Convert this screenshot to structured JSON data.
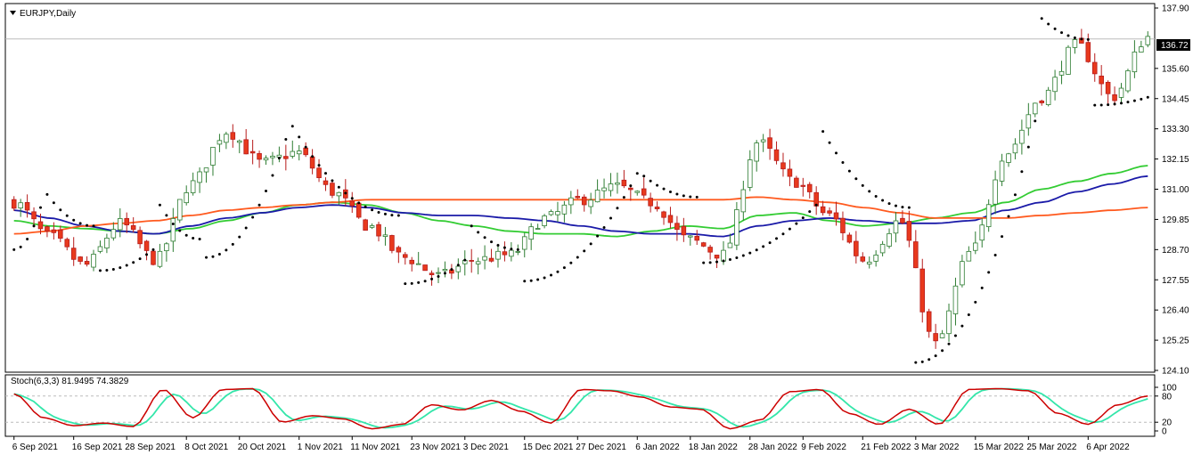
{
  "chart_window": {
    "symbol_label": "EURJPY,Daily",
    "stoch_label": "Stoch(6,3,3) 81.9495 74.3829",
    "current_price_label": "136.72"
  },
  "colors": {
    "bull_fill": "#ffffff",
    "bull_border": "#2e7d32",
    "bear_fill": "#e8391d",
    "bear_border": "#b71c1c",
    "ma_green": "#33cc33",
    "ma_blue": "#1a1aa8",
    "ma_orange": "#ff5a1f",
    "stoch_main": "#cc0000",
    "stoch_signal": "#33e6aa",
    "grid_line": "#bbbbbb"
  },
  "chart_data": [
    {
      "type": "candlestick",
      "title": "EURJPY,Daily",
      "price_axis_ticks": [
        "137.90",
        "136.72",
        "135.60",
        "134.45",
        "133.30",
        "132.15",
        "131.00",
        "129.85",
        "128.70",
        "127.55",
        "126.40",
        "125.25",
        "124.10"
      ],
      "ylim": [
        124.1,
        137.9
      ],
      "current_price": 136.72,
      "date_axis_ticks": [
        "6 Sep 2021",
        "16 Sep 2021",
        "28 Sep 2021",
        "8 Oct 2021",
        "20 Oct 2021",
        "1 Nov 2021",
        "11 Nov 2021",
        "23 Nov 2021",
        "3 Dec 2021",
        "15 Dec 2021",
        "27 Dec 2021",
        "6 Jan 2022",
        "18 Jan 2022",
        "28 Jan 2022",
        "9 Feb 2022",
        "21 Feb 2022",
        "3 Mar 2022",
        "15 Mar 2022",
        "25 Mar 2022",
        "6 Apr 2022"
      ],
      "close_anchors": [
        130.5,
        129.2,
        128.1,
        129.7,
        128.3,
        131.2,
        133.2,
        132.0,
        132.4,
        130.9,
        129.6,
        128.4,
        127.7,
        128.3,
        128.5,
        129.9,
        130.6,
        131.1,
        130.5,
        129.1,
        128.5,
        132.8,
        131.3,
        130.0,
        128.3,
        129.8,
        125.1,
        128.6,
        132.4,
        134.5,
        136.5,
        134.5,
        136.8
      ],
      "moving_averages": {
        "green_ma": [
          129.8,
          129.6,
          129.5,
          129.4,
          129.3,
          129.5,
          129.8,
          130.1,
          130.4,
          130.5,
          130.4,
          130.1,
          129.8,
          129.6,
          129.4,
          129.3,
          129.3,
          129.2,
          129.4,
          129.6,
          129.5,
          130.0,
          130.1,
          129.8,
          129.6,
          129.7,
          129.9,
          130.1,
          130.5,
          131.0,
          131.3,
          131.6,
          131.9
        ],
        "blue_ma": [
          130.2,
          129.9,
          129.6,
          129.4,
          129.3,
          129.6,
          129.9,
          130.1,
          130.3,
          130.4,
          130.3,
          130.1,
          130.0,
          130.0,
          129.9,
          129.8,
          129.6,
          129.4,
          129.3,
          129.3,
          129.2,
          129.6,
          129.8,
          129.9,
          129.8,
          129.7,
          129.7,
          129.8,
          130.2,
          130.5,
          130.9,
          131.2,
          131.5
        ],
        "orange_ma": [
          129.3,
          129.4,
          129.6,
          129.7,
          129.8,
          130.0,
          130.2,
          130.3,
          130.4,
          130.5,
          130.6,
          130.6,
          130.6,
          130.6,
          130.6,
          130.6,
          130.6,
          130.6,
          130.6,
          130.6,
          130.6,
          130.7,
          130.6,
          130.5,
          130.3,
          130.1,
          129.9,
          129.9,
          129.9,
          130.0,
          130.1,
          130.2,
          130.3
        ]
      },
      "parabolic_sar": [
        {
          "from": 0,
          "to": 4,
          "start": 128.7,
          "end": 130.3,
          "side": "below"
        },
        {
          "from": 5,
          "to": 12,
          "start": 130.8,
          "end": 129.6,
          "side": "above"
        },
        {
          "from": 13,
          "to": 21,
          "start": 127.9,
          "end": 128.7,
          "side": "below"
        },
        {
          "from": 22,
          "to": 28,
          "start": 130.4,
          "end": 129.1,
          "side": "above"
        },
        {
          "from": 29,
          "to": 41,
          "start": 128.4,
          "end": 132.9,
          "side": "below"
        },
        {
          "from": 42,
          "to": 58,
          "start": 133.4,
          "end": 130.0,
          "side": "above"
        },
        {
          "from": 59,
          "to": 68,
          "start": 127.4,
          "end": 128.3,
          "side": "below"
        },
        {
          "from": 69,
          "to": 76,
          "start": 129.6,
          "end": 128.7,
          "side": "above"
        },
        {
          "from": 77,
          "to": 94,
          "start": 127.5,
          "end": 131.6,
          "side": "below"
        },
        {
          "from": 95,
          "to": 103,
          "start": 131.5,
          "end": 130.7,
          "side": "above"
        },
        {
          "from": 104,
          "to": 121,
          "start": 128.2,
          "end": 130.4,
          "side": "below"
        },
        {
          "from": 122,
          "to": 135,
          "start": 133.2,
          "end": 130.3,
          "side": "above"
        },
        {
          "from": 136,
          "to": 154,
          "start": 124.4,
          "end": 133.6,
          "side": "below"
        },
        {
          "from": 155,
          "to": 162,
          "start": 137.5,
          "end": 136.7,
          "side": "above"
        },
        {
          "from": 163,
          "to": 171,
          "start": 134.2,
          "end": 134.5,
          "side": "below"
        }
      ]
    },
    {
      "type": "line",
      "title": "Stoch(6,3,3) 81.9495 74.3829",
      "levels": [
        80,
        20
      ],
      "level_labels": [
        "100",
        "80",
        "20",
        "0"
      ],
      "ylim": [
        0,
        100
      ],
      "main_value": 81.9495,
      "signal_value": 74.3829,
      "main_anchors": [
        85,
        30,
        12,
        18,
        10,
        95,
        30,
        95,
        97,
        20,
        35,
        28,
        5,
        15,
        60,
        48,
        70,
        45,
        18,
        95,
        92,
        78,
        55,
        50,
        5,
        25,
        90,
        95,
        40,
        15,
        50,
        15,
        95,
        97,
        92,
        40,
        15,
        60,
        80
      ]
    }
  ]
}
